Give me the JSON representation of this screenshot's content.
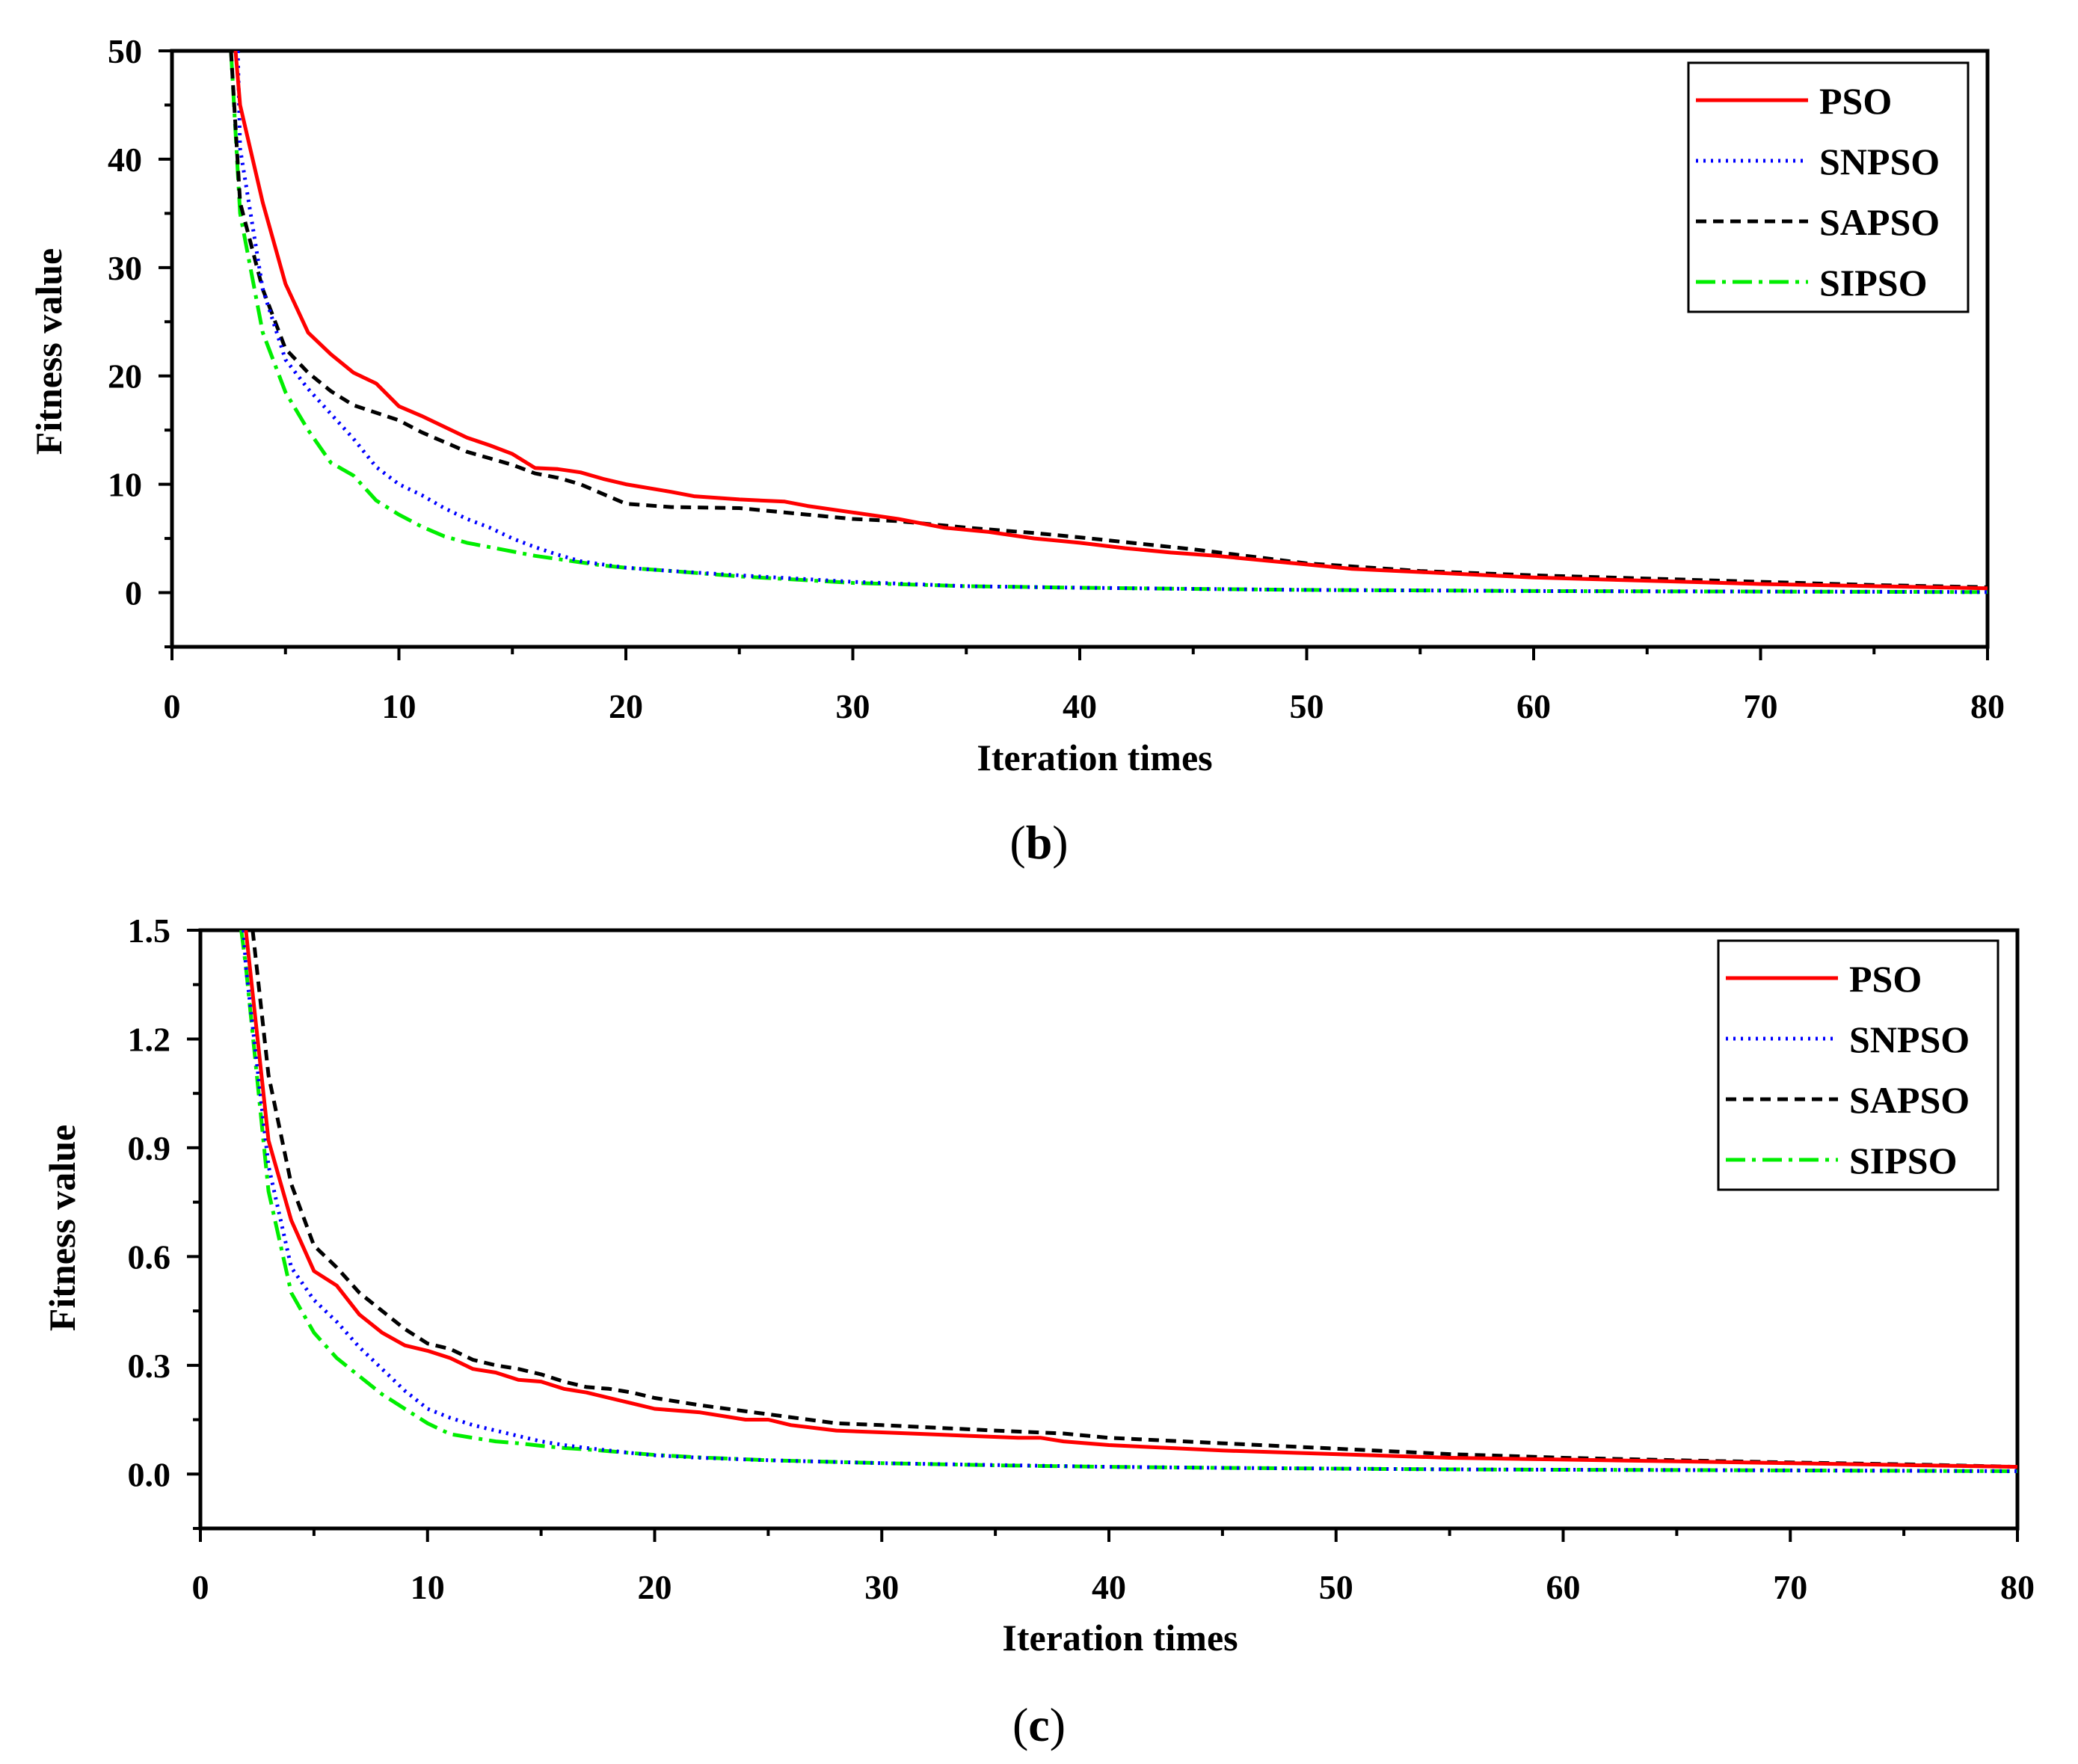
{
  "series_styles": {
    "PSO": {
      "color": "#ff0000",
      "dash": "none"
    },
    "SNPSO": {
      "color": "#0000ff",
      "dash": "3,7"
    },
    "SAPSO": {
      "color": "#000000",
      "dash": "14,9"
    },
    "SIPSO": {
      "color": "#00ee00",
      "dash": "26,9,5,9"
    }
  },
  "captions": {
    "b": {
      "open": "(",
      "letter": "b",
      "close": ")"
    },
    "c": {
      "open": "(",
      "letter": "c",
      "close": ")"
    }
  },
  "chart_data": [
    {
      "id": "b",
      "type": "line",
      "xlabel": "Iteration times",
      "ylabel": "Fitness value",
      "xlim": [
        0,
        80
      ],
      "ylim": [
        -5,
        50
      ],
      "xticks": [
        0,
        10,
        20,
        30,
        40,
        50,
        60,
        70,
        80
      ],
      "xtick_labels": [
        "0",
        "10",
        "20",
        "30",
        "40",
        "50",
        "60",
        "70",
        "80"
      ],
      "yticks": [
        0,
        10,
        20,
        30,
        40,
        50
      ],
      "ytick_labels": [
        "0",
        "10",
        "20",
        "30",
        "40",
        "50"
      ],
      "legend": [
        "PSO",
        "SNPSO",
        "SAPSO",
        "SIPSO"
      ],
      "legend_position": "top-right",
      "series": [
        {
          "name": "PSO",
          "x": [
            2.8,
            3,
            4,
            5,
            6,
            7,
            8,
            9,
            10,
            11,
            12,
            13,
            14,
            15,
            16,
            17,
            18,
            19,
            20,
            22,
            23,
            25,
            27,
            28,
            30,
            32,
            34,
            36,
            38,
            40,
            42,
            44,
            46,
            48,
            50,
            52,
            55,
            60,
            65,
            70,
            75,
            80
          ],
          "y": [
            50,
            45,
            36,
            28.5,
            24,
            22,
            20.3,
            19.3,
            17.2,
            16.3,
            15.3,
            14.3,
            13.6,
            12.8,
            11.5,
            11.4,
            11.1,
            10.5,
            10,
            9.3,
            8.9,
            8.6,
            8.4,
            8,
            7.4,
            6.8,
            6,
            5.6,
            5,
            4.6,
            4.1,
            3.7,
            3.4,
            3,
            2.6,
            2.2,
            1.9,
            1.4,
            1.1,
            0.8,
            0.6,
            0.4
          ]
        },
        {
          "name": "SNPSO",
          "x": [
            2.9,
            3,
            4,
            5,
            6,
            7,
            8,
            9,
            10,
            11,
            12,
            13,
            14,
            15,
            16,
            17,
            18,
            19,
            20,
            22,
            25,
            30,
            35,
            40,
            45,
            50,
            55,
            60,
            65,
            70,
            75,
            80
          ],
          "y": [
            50,
            41,
            28,
            21.5,
            18.8,
            16.5,
            14.2,
            11.6,
            10,
            9,
            7.8,
            6.8,
            6,
            5,
            4.2,
            3.5,
            2.9,
            2.6,
            2.3,
            2,
            1.6,
            1,
            0.6,
            0.45,
            0.35,
            0.25,
            0.2,
            0.15,
            0.12,
            0.1,
            0.08,
            0.05
          ]
        },
        {
          "name": "SAPSO",
          "x": [
            2.6,
            3,
            4,
            5,
            6,
            7,
            8,
            9,
            10,
            11,
            12,
            13,
            14,
            15,
            16,
            17,
            18,
            19,
            20,
            22,
            25,
            28,
            30,
            32,
            35,
            38,
            40,
            45,
            50,
            55,
            60,
            65,
            70,
            75,
            80
          ],
          "y": [
            50,
            36,
            28,
            22.5,
            20.3,
            18.6,
            17.3,
            16.6,
            15.9,
            14.8,
            13.9,
            13,
            12.4,
            11.8,
            11,
            10.6,
            10,
            9.1,
            8.2,
            7.9,
            7.8,
            7.2,
            6.8,
            6.6,
            6,
            5.5,
            5.1,
            4,
            2.7,
            2,
            1.6,
            1.3,
            1,
            0.7,
            0.5
          ]
        },
        {
          "name": "SIPSO",
          "x": [
            2.6,
            3,
            4,
            5,
            6,
            7,
            8,
            9,
            10,
            11,
            12,
            13,
            14,
            15,
            16,
            17,
            18,
            19,
            20,
            22,
            25,
            30,
            35,
            40,
            45,
            50,
            55,
            60,
            65,
            70,
            75,
            80
          ],
          "y": [
            50,
            35,
            24,
            18.5,
            15,
            12,
            10.8,
            8.5,
            7.2,
            6.1,
            5.2,
            4.6,
            4.2,
            3.8,
            3.4,
            3.1,
            2.8,
            2.5,
            2.3,
            2,
            1.5,
            0.9,
            0.6,
            0.45,
            0.35,
            0.25,
            0.2,
            0.15,
            0.12,
            0.1,
            0.08,
            0.05
          ]
        }
      ]
    },
    {
      "id": "c",
      "type": "line",
      "xlabel": "Iteration times",
      "ylabel": "Fitness value",
      "xlim": [
        0,
        80
      ],
      "ylim": [
        -0.15,
        1.5
      ],
      "xticks": [
        0,
        10,
        20,
        30,
        40,
        50,
        60,
        70,
        80
      ],
      "xtick_labels": [
        "0",
        "10",
        "20",
        "30",
        "40",
        "50",
        "60",
        "70",
        "80"
      ],
      "yticks": [
        0,
        0.3,
        0.6,
        0.9,
        1.2,
        1.5
      ],
      "ytick_labels": [
        "0.0",
        "0.3",
        "0.6",
        "0.9",
        "1.2",
        "1.5"
      ],
      "legend": [
        "PSO",
        "SNPSO",
        "SAPSO",
        "SIPSO"
      ],
      "legend_position": "top-right",
      "series": [
        {
          "name": "PSO",
          "x": [
            2,
            3,
            4,
            5,
            6,
            7,
            8,
            9,
            10,
            11,
            12,
            13,
            14,
            15,
            16,
            17,
            18,
            19,
            20,
            22,
            24,
            25,
            26,
            28,
            30,
            32,
            34,
            36,
            37,
            38,
            40,
            45,
            50,
            55,
            60,
            65,
            70,
            75,
            80
          ],
          "y": [
            1.5,
            0.92,
            0.7,
            0.56,
            0.52,
            0.44,
            0.39,
            0.355,
            0.34,
            0.32,
            0.29,
            0.28,
            0.26,
            0.255,
            0.235,
            0.225,
            0.21,
            0.195,
            0.18,
            0.17,
            0.15,
            0.15,
            0.135,
            0.12,
            0.115,
            0.11,
            0.105,
            0.1,
            0.1,
            0.09,
            0.08,
            0.065,
            0.055,
            0.045,
            0.04,
            0.035,
            0.03,
            0.025,
            0.02
          ]
        },
        {
          "name": "SNPSO",
          "x": [
            1.9,
            2,
            3,
            4,
            5,
            6,
            7,
            8,
            9,
            10,
            11,
            12,
            13,
            14,
            15,
            16,
            17,
            18,
            19,
            20,
            22,
            25,
            30,
            35,
            40,
            45,
            50,
            55,
            60,
            65,
            70,
            75,
            80
          ],
          "y": [
            1.5,
            1.4,
            0.85,
            0.57,
            0.48,
            0.42,
            0.35,
            0.29,
            0.23,
            0.18,
            0.155,
            0.135,
            0.12,
            0.105,
            0.09,
            0.08,
            0.072,
            0.065,
            0.058,
            0.052,
            0.045,
            0.038,
            0.03,
            0.025,
            0.02,
            0.017,
            0.015,
            0.013,
            0.012,
            0.011,
            0.01,
            0.009,
            0.008
          ]
        },
        {
          "name": "SAPSO",
          "x": [
            2.3,
            3,
            4,
            5,
            6,
            7,
            8,
            9,
            10,
            11,
            12,
            13,
            14,
            15,
            16,
            17,
            18,
            19,
            20,
            22,
            25,
            28,
            30,
            35,
            38,
            40,
            45,
            50,
            55,
            60,
            65,
            70,
            75,
            80
          ],
          "y": [
            1.5,
            1.1,
            0.8,
            0.63,
            0.57,
            0.5,
            0.45,
            0.4,
            0.36,
            0.345,
            0.315,
            0.3,
            0.29,
            0.275,
            0.255,
            0.24,
            0.235,
            0.225,
            0.21,
            0.19,
            0.165,
            0.14,
            0.135,
            0.12,
            0.112,
            0.1,
            0.085,
            0.07,
            0.055,
            0.045,
            0.038,
            0.032,
            0.027,
            0.02
          ]
        },
        {
          "name": "SIPSO",
          "x": [
            1.8,
            2,
            3,
            4,
            5,
            6,
            7,
            8,
            9,
            10,
            11,
            12,
            13,
            14,
            15,
            16,
            17,
            18,
            19,
            20,
            22,
            25,
            30,
            35,
            40,
            45,
            50,
            55,
            60,
            65,
            70,
            75,
            80
          ],
          "y": [
            1.5,
            1.4,
            0.78,
            0.5,
            0.39,
            0.32,
            0.27,
            0.22,
            0.18,
            0.14,
            0.11,
            0.1,
            0.09,
            0.085,
            0.078,
            0.072,
            0.068,
            0.063,
            0.058,
            0.053,
            0.046,
            0.038,
            0.03,
            0.024,
            0.02,
            0.017,
            0.015,
            0.013,
            0.012,
            0.011,
            0.01,
            0.009,
            0.008
          ]
        }
      ]
    }
  ]
}
